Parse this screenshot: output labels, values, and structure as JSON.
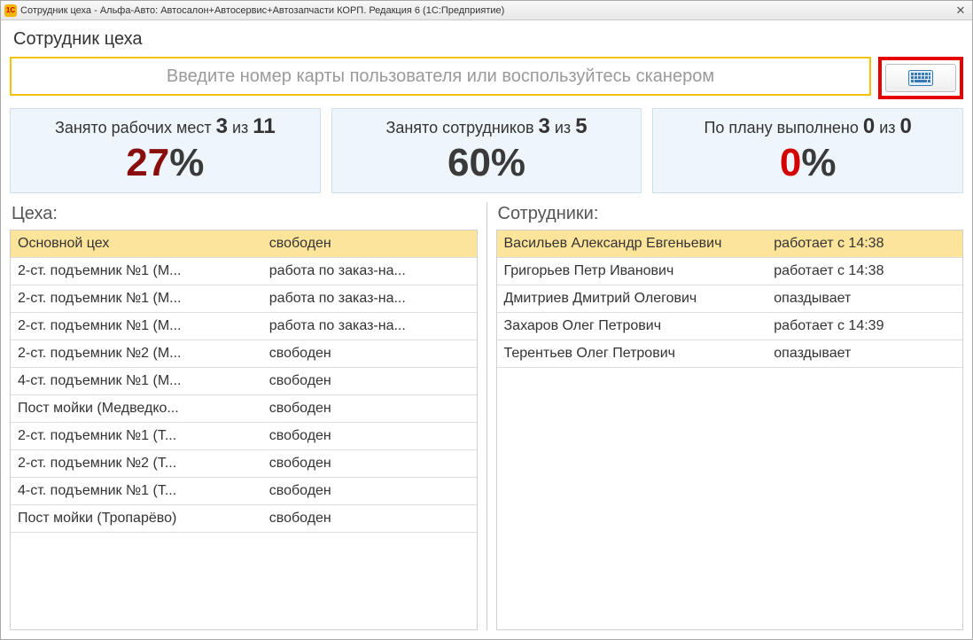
{
  "window": {
    "title": "Сотрудник цеха - Альфа-Авто: Автосалон+Автосервис+Автозапчасти КОРП. Редакция 6  (1С:Предприятие)",
    "logo_text": "1C"
  },
  "page": {
    "title": "Сотрудник цеха",
    "search_placeholder": "Введите номер карты пользователя или воспользуйтесь сканером"
  },
  "stats": [
    {
      "label_prefix": "Занято рабочих мест ",
      "num1": "3",
      "mid": " из ",
      "num2": "11",
      "value": "27",
      "pct": "%",
      "color": "#8a0d0d"
    },
    {
      "label_prefix": "Занято сотрудников ",
      "num1": "3",
      "mid": " из ",
      "num2": "5",
      "value": "60",
      "pct": "%",
      "color": "#3a3a3a"
    },
    {
      "label_prefix": "По плану выполнено ",
      "num1": "0",
      "mid": " из ",
      "num2": "0",
      "value": "0",
      "pct": "%",
      "color": "#d40000"
    }
  ],
  "workshops": {
    "title": "Цеха:",
    "header": {
      "name": "Основной цех",
      "status": "свободен"
    },
    "rows": [
      {
        "name": "2-ст. подъемник №1 (М...",
        "status": "работа по заказ-на..."
      },
      {
        "name": "2-ст. подъемник №1 (М...",
        "status": "работа по заказ-на..."
      },
      {
        "name": "2-ст. подъемник №1 (М...",
        "status": "работа по заказ-на..."
      },
      {
        "name": "2-ст. подъемник №2 (М...",
        "status": "свободен"
      },
      {
        "name": "4-ст. подъемник №1 (М...",
        "status": "свободен"
      },
      {
        "name": "Пост мойки (Медведко...",
        "status": "свободен"
      },
      {
        "name": "2-ст. подъемник №1 (Т...",
        "status": "свободен"
      },
      {
        "name": "2-ст. подъемник №2 (Т...",
        "status": "свободен"
      },
      {
        "name": "4-ст. подъемник №1 (Т...",
        "status": "свободен"
      },
      {
        "name": "Пост мойки (Тропарёво)",
        "status": "свободен"
      }
    ]
  },
  "employees": {
    "title": "Сотрудники:",
    "header": {
      "name": "Васильев Александр Евгеньевич",
      "status": "работает с 14:38"
    },
    "rows": [
      {
        "name": "Григорьев Петр Иванович",
        "status": "работает с 14:38"
      },
      {
        "name": "Дмитриев Дмитрий Олегович",
        "status": "опаздывает"
      },
      {
        "name": "Захаров Олег Петрович",
        "status": "работает с 14:39"
      },
      {
        "name": "Терентьев Олег Петрович",
        "status": "опаздывает"
      }
    ]
  },
  "colors": {
    "highlight_border": "#e60000",
    "header_row": "#fde49b",
    "stat_bg": "#eef6fb",
    "search_border": "#f3c200"
  }
}
